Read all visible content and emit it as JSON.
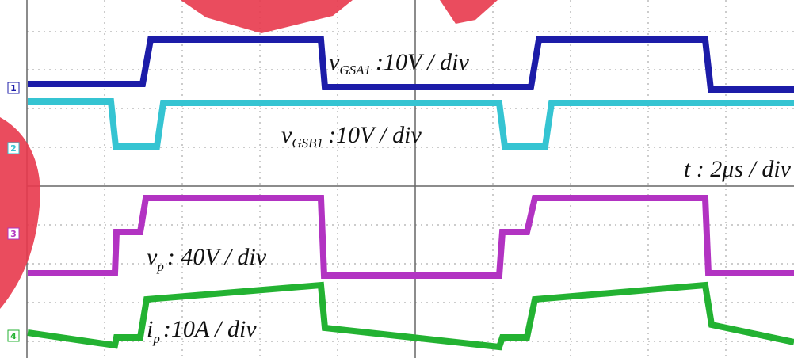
{
  "channels": [
    {
      "marker": "1",
      "symbol": "v",
      "subscript": "GSA1",
      "scale": ":10V / div"
    },
    {
      "marker": "2",
      "symbol": "v",
      "subscript": "GSB1",
      "scale": ":10V / div"
    },
    {
      "marker": "3",
      "symbol": "v",
      "subscript": "p",
      "scale": ": 40V / div"
    },
    {
      "marker": "4",
      "symbol": "i",
      "subscript": "p",
      "scale": ":10A / div"
    }
  ],
  "time_scale": "t : 2μs / div"
}
